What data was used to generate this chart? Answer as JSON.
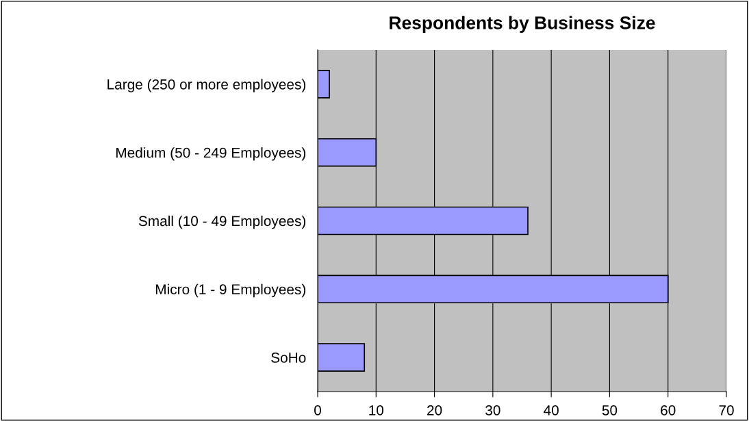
{
  "chart_data": {
    "type": "bar",
    "orientation": "horizontal",
    "title": "Respondents by Business Size",
    "categories": [
      "Large (250 or more employees)",
      "Medium (50 - 249 Employees)",
      "Small (10 - 49 Employees)",
      "Micro (1 - 9 Employees)",
      "SoHo"
    ],
    "values": [
      2,
      10,
      36,
      60,
      8
    ],
    "color": "#9999ff",
    "xlim": [
      0,
      70
    ],
    "xticks": [
      0,
      10,
      20,
      30,
      40,
      50,
      60,
      70
    ],
    "grid": "x",
    "legend": false
  }
}
